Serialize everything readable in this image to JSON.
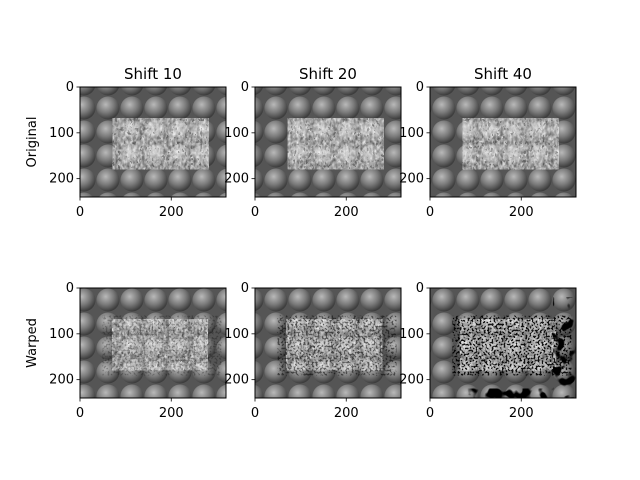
{
  "figure": {
    "row_labels": [
      "Original",
      "Warped"
    ],
    "column_titles": [
      "Shift 10",
      "Shift 20",
      "Shift 40"
    ]
  },
  "chart_data": [
    {
      "type": "heatmap",
      "title": "Shift 10",
      "ylabel": "Original",
      "xlim": [
        0,
        320
      ],
      "ylim": [
        240,
        0
      ],
      "xticks": [
        0,
        200
      ],
      "yticks": [
        0,
        100,
        200
      ],
      "colormap": "gray",
      "shift": 10,
      "warped": false
    },
    {
      "type": "heatmap",
      "title": "Shift 20",
      "ylabel": "",
      "xlim": [
        0,
        320
      ],
      "ylim": [
        240,
        0
      ],
      "xticks": [
        0,
        200
      ],
      "yticks": [
        0,
        100,
        200
      ],
      "colormap": "gray",
      "shift": 20,
      "warped": false
    },
    {
      "type": "heatmap",
      "title": "Shift 40",
      "ylabel": "",
      "xlim": [
        0,
        320
      ],
      "ylim": [
        240,
        0
      ],
      "xticks": [
        0,
        200
      ],
      "yticks": [
        0,
        100,
        200
      ],
      "colormap": "gray",
      "shift": 40,
      "warped": false
    },
    {
      "type": "heatmap",
      "title": "",
      "ylabel": "Warped",
      "xlim": [
        0,
        320
      ],
      "ylim": [
        240,
        0
      ],
      "xticks": [
        0,
        200
      ],
      "yticks": [
        0,
        100,
        200
      ],
      "colormap": "gray",
      "shift": 10,
      "warped": true
    },
    {
      "type": "heatmap",
      "title": "",
      "ylabel": "",
      "xlim": [
        0,
        320
      ],
      "ylim": [
        240,
        0
      ],
      "xticks": [
        0,
        200
      ],
      "yticks": [
        0,
        100,
        200
      ],
      "colormap": "gray",
      "shift": 20,
      "warped": true
    },
    {
      "type": "heatmap",
      "title": "",
      "ylabel": "",
      "xlim": [
        0,
        320
      ],
      "ylim": [
        240,
        0
      ],
      "xticks": [
        0,
        200
      ],
      "yticks": [
        0,
        100,
        200
      ],
      "colormap": "gray",
      "shift": 40,
      "warped": true
    }
  ]
}
